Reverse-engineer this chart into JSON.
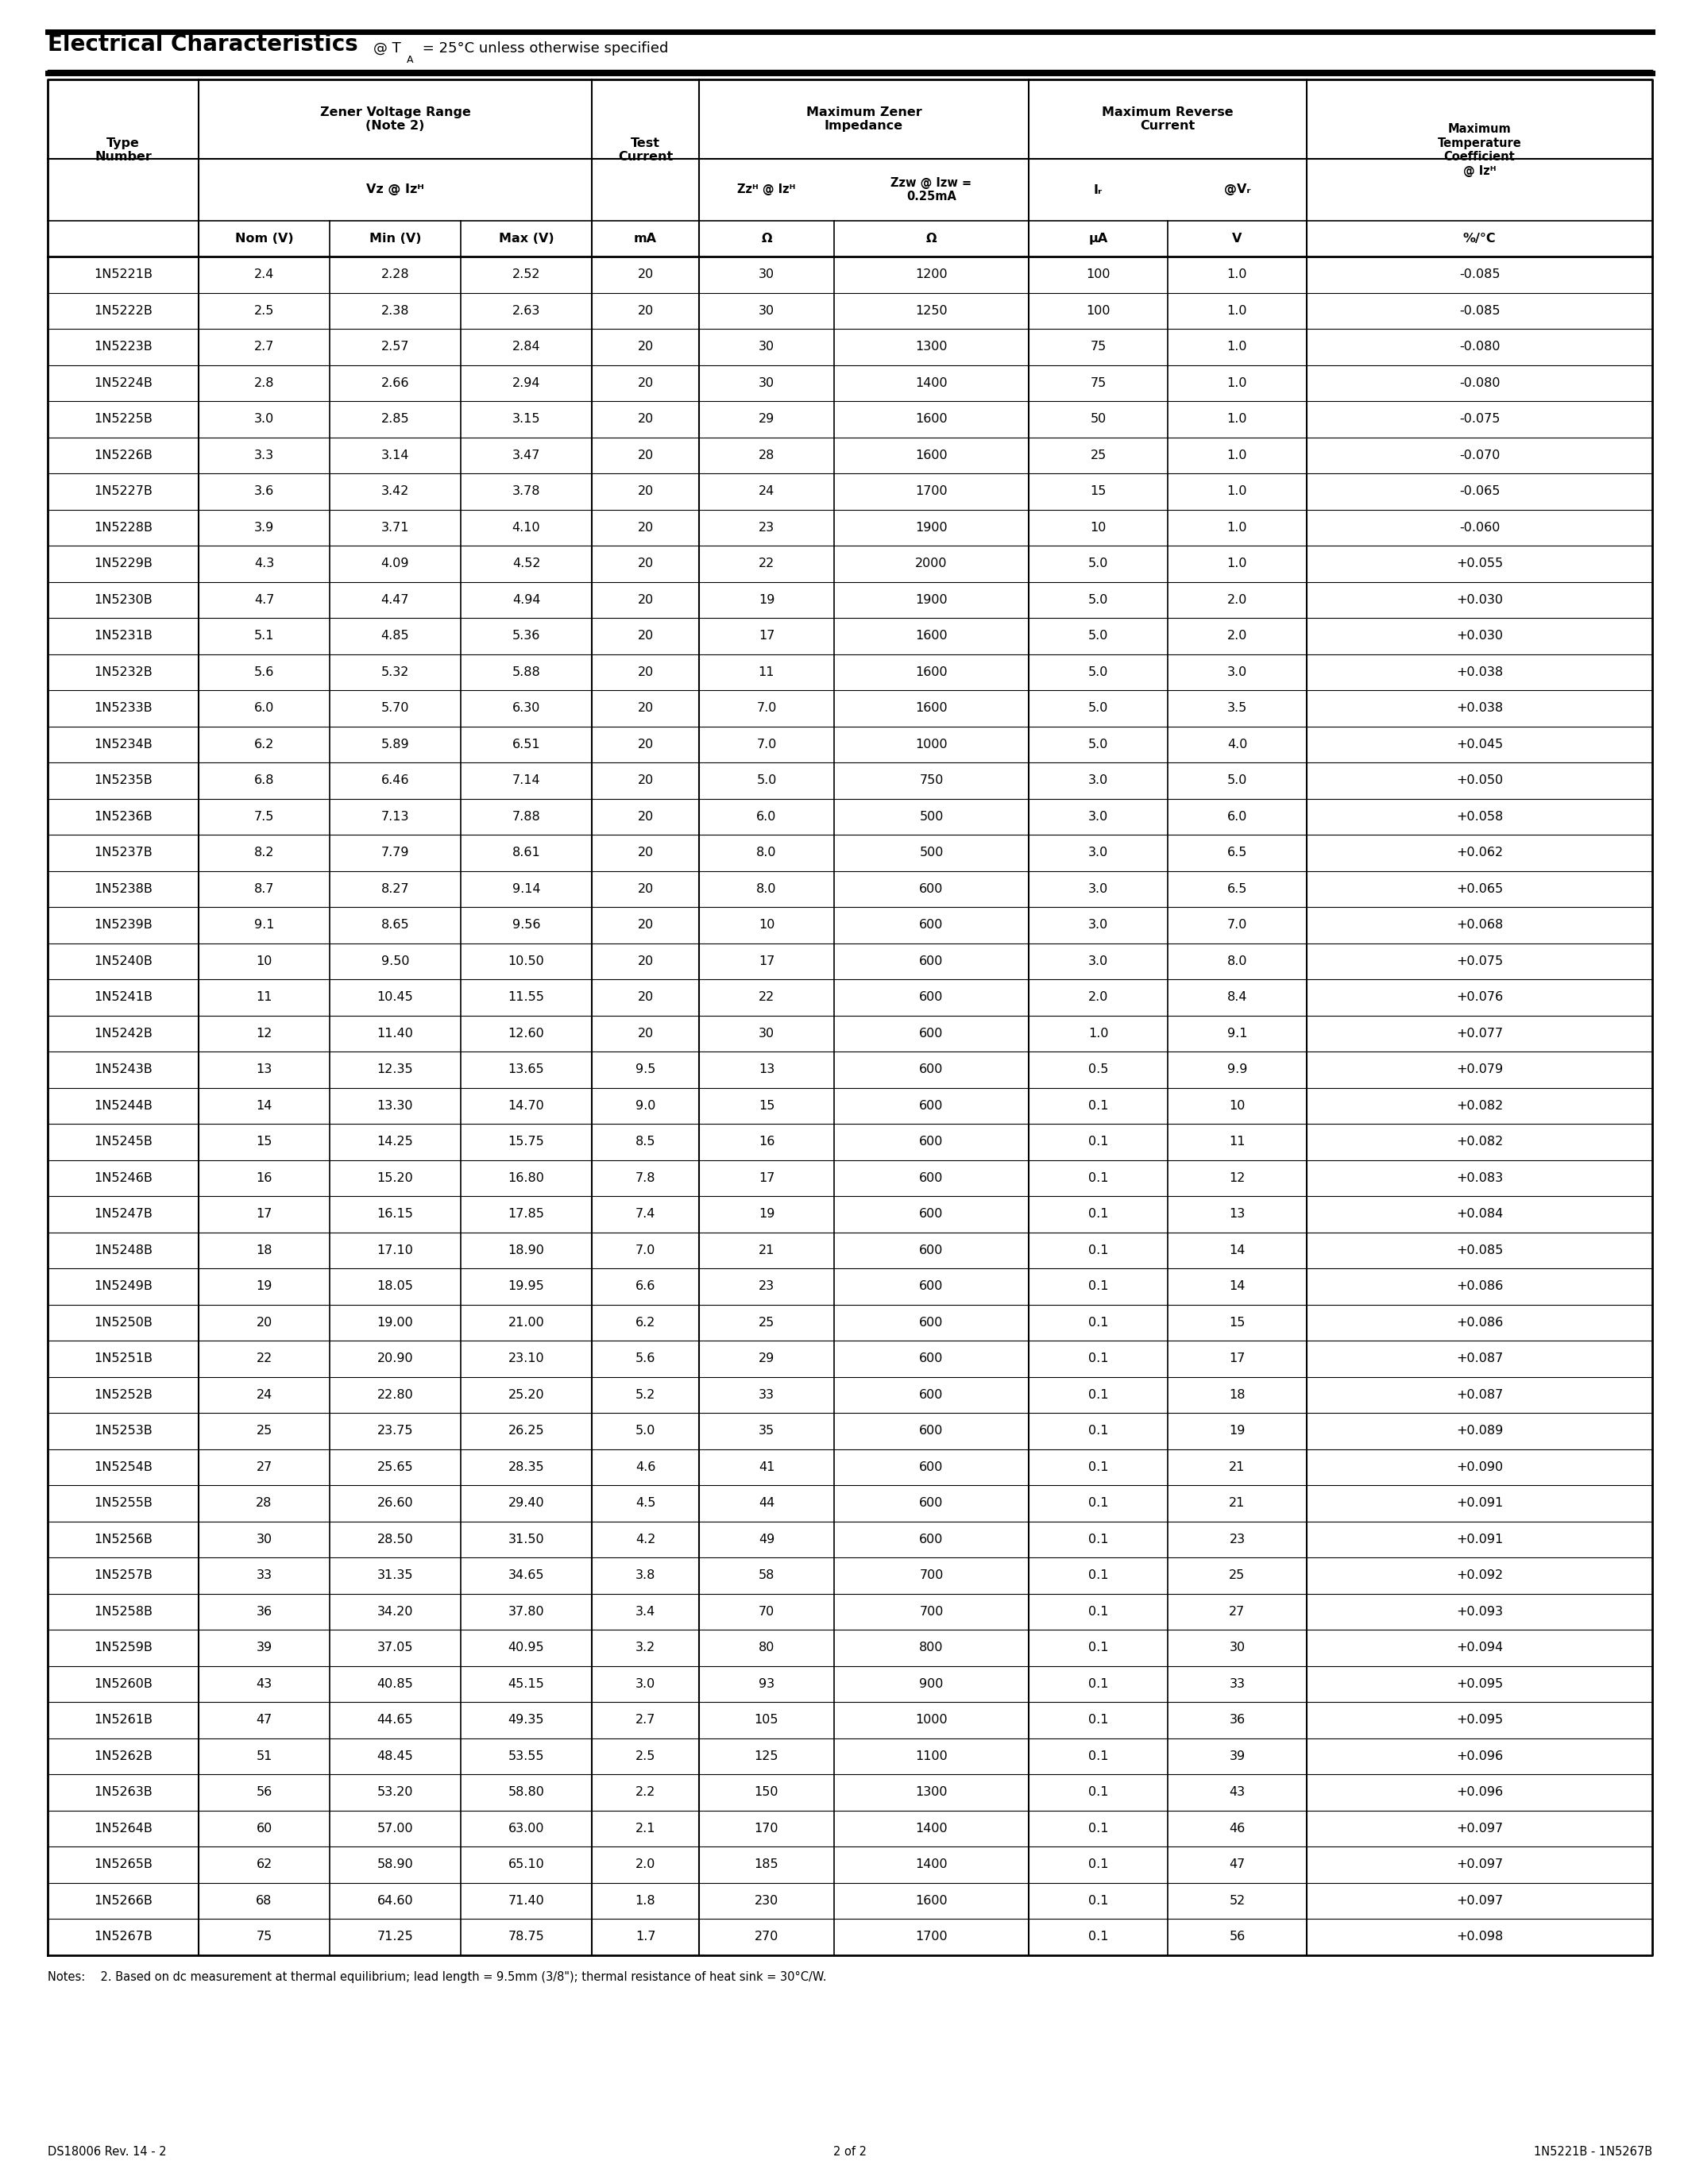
{
  "title_bold": "Electrical Characteristics",
  "title_subtitle": "@ T",
  "title_sub_char": "A",
  "title_rest": " = 25°C unless otherwise specified",
  "page_info_left": "DS18006 Rev. 14 - 2",
  "page_info_center": "2 of 2",
  "page_info_right": "1N5221B - 1N5267B",
  "note": "Notes:  2. Based on dc measurement at thermal equilibrium; lead length = 9.5mm (3/8\"); thermal resistance of heat sink = 30°C/W.",
  "rows": [
    [
      "1N5221B",
      "2.4",
      "2.28",
      "2.52",
      "20",
      "30",
      "1200",
      "100",
      "1.0",
      "-0.085"
    ],
    [
      "1N5222B",
      "2.5",
      "2.38",
      "2.63",
      "20",
      "30",
      "1250",
      "100",
      "1.0",
      "-0.085"
    ],
    [
      "1N5223B",
      "2.7",
      "2.57",
      "2.84",
      "20",
      "30",
      "1300",
      "75",
      "1.0",
      "-0.080"
    ],
    [
      "1N5224B",
      "2.8",
      "2.66",
      "2.94",
      "20",
      "30",
      "1400",
      "75",
      "1.0",
      "-0.080"
    ],
    [
      "1N5225B",
      "3.0",
      "2.85",
      "3.15",
      "20",
      "29",
      "1600",
      "50",
      "1.0",
      "-0.075"
    ],
    [
      "1N5226B",
      "3.3",
      "3.14",
      "3.47",
      "20",
      "28",
      "1600",
      "25",
      "1.0",
      "-0.070"
    ],
    [
      "1N5227B",
      "3.6",
      "3.42",
      "3.78",
      "20",
      "24",
      "1700",
      "15",
      "1.0",
      "-0.065"
    ],
    [
      "1N5228B",
      "3.9",
      "3.71",
      "4.10",
      "20",
      "23",
      "1900",
      "10",
      "1.0",
      "-0.060"
    ],
    [
      "1N5229B",
      "4.3",
      "4.09",
      "4.52",
      "20",
      "22",
      "2000",
      "5.0",
      "1.0",
      "+0.055"
    ],
    [
      "1N5230B",
      "4.7",
      "4.47",
      "4.94",
      "20",
      "19",
      "1900",
      "5.0",
      "2.0",
      "+0.030"
    ],
    [
      "1N5231B",
      "5.1",
      "4.85",
      "5.36",
      "20",
      "17",
      "1600",
      "5.0",
      "2.0",
      "+0.030"
    ],
    [
      "1N5232B",
      "5.6",
      "5.32",
      "5.88",
      "20",
      "11",
      "1600",
      "5.0",
      "3.0",
      "+0.038"
    ],
    [
      "1N5233B",
      "6.0",
      "5.70",
      "6.30",
      "20",
      "7.0",
      "1600",
      "5.0",
      "3.5",
      "+0.038"
    ],
    [
      "1N5234B",
      "6.2",
      "5.89",
      "6.51",
      "20",
      "7.0",
      "1000",
      "5.0",
      "4.0",
      "+0.045"
    ],
    [
      "1N5235B",
      "6.8",
      "6.46",
      "7.14",
      "20",
      "5.0",
      "750",
      "3.0",
      "5.0",
      "+0.050"
    ],
    [
      "1N5236B",
      "7.5",
      "7.13",
      "7.88",
      "20",
      "6.0",
      "500",
      "3.0",
      "6.0",
      "+0.058"
    ],
    [
      "1N5237B",
      "8.2",
      "7.79",
      "8.61",
      "20",
      "8.0",
      "500",
      "3.0",
      "6.5",
      "+0.062"
    ],
    [
      "1N5238B",
      "8.7",
      "8.27",
      "9.14",
      "20",
      "8.0",
      "600",
      "3.0",
      "6.5",
      "+0.065"
    ],
    [
      "1N5239B",
      "9.1",
      "8.65",
      "9.56",
      "20",
      "10",
      "600",
      "3.0",
      "7.0",
      "+0.068"
    ],
    [
      "1N5240B",
      "10",
      "9.50",
      "10.50",
      "20",
      "17",
      "600",
      "3.0",
      "8.0",
      "+0.075"
    ],
    [
      "1N5241B",
      "11",
      "10.45",
      "11.55",
      "20",
      "22",
      "600",
      "2.0",
      "8.4",
      "+0.076"
    ],
    [
      "1N5242B",
      "12",
      "11.40",
      "12.60",
      "20",
      "30",
      "600",
      "1.0",
      "9.1",
      "+0.077"
    ],
    [
      "1N5243B",
      "13",
      "12.35",
      "13.65",
      "9.5",
      "13",
      "600",
      "0.5",
      "9.9",
      "+0.079"
    ],
    [
      "1N5244B",
      "14",
      "13.30",
      "14.70",
      "9.0",
      "15",
      "600",
      "0.1",
      "10",
      "+0.082"
    ],
    [
      "1N5245B",
      "15",
      "14.25",
      "15.75",
      "8.5",
      "16",
      "600",
      "0.1",
      "11",
      "+0.082"
    ],
    [
      "1N5246B",
      "16",
      "15.20",
      "16.80",
      "7.8",
      "17",
      "600",
      "0.1",
      "12",
      "+0.083"
    ],
    [
      "1N5247B",
      "17",
      "16.15",
      "17.85",
      "7.4",
      "19",
      "600",
      "0.1",
      "13",
      "+0.084"
    ],
    [
      "1N5248B",
      "18",
      "17.10",
      "18.90",
      "7.0",
      "21",
      "600",
      "0.1",
      "14",
      "+0.085"
    ],
    [
      "1N5249B",
      "19",
      "18.05",
      "19.95",
      "6.6",
      "23",
      "600",
      "0.1",
      "14",
      "+0.086"
    ],
    [
      "1N5250B",
      "20",
      "19.00",
      "21.00",
      "6.2",
      "25",
      "600",
      "0.1",
      "15",
      "+0.086"
    ],
    [
      "1N5251B",
      "22",
      "20.90",
      "23.10",
      "5.6",
      "29",
      "600",
      "0.1",
      "17",
      "+0.087"
    ],
    [
      "1N5252B",
      "24",
      "22.80",
      "25.20",
      "5.2",
      "33",
      "600",
      "0.1",
      "18",
      "+0.087"
    ],
    [
      "1N5253B",
      "25",
      "23.75",
      "26.25",
      "5.0",
      "35",
      "600",
      "0.1",
      "19",
      "+0.089"
    ],
    [
      "1N5254B",
      "27",
      "25.65",
      "28.35",
      "4.6",
      "41",
      "600",
      "0.1",
      "21",
      "+0.090"
    ],
    [
      "1N5255B",
      "28",
      "26.60",
      "29.40",
      "4.5",
      "44",
      "600",
      "0.1",
      "21",
      "+0.091"
    ],
    [
      "1N5256B",
      "30",
      "28.50",
      "31.50",
      "4.2",
      "49",
      "600",
      "0.1",
      "23",
      "+0.091"
    ],
    [
      "1N5257B",
      "33",
      "31.35",
      "34.65",
      "3.8",
      "58",
      "700",
      "0.1",
      "25",
      "+0.092"
    ],
    [
      "1N5258B",
      "36",
      "34.20",
      "37.80",
      "3.4",
      "70",
      "700",
      "0.1",
      "27",
      "+0.093"
    ],
    [
      "1N5259B",
      "39",
      "37.05",
      "40.95",
      "3.2",
      "80",
      "800",
      "0.1",
      "30",
      "+0.094"
    ],
    [
      "1N5260B",
      "43",
      "40.85",
      "45.15",
      "3.0",
      "93",
      "900",
      "0.1",
      "33",
      "+0.095"
    ],
    [
      "1N5261B",
      "47",
      "44.65",
      "49.35",
      "2.7",
      "105",
      "1000",
      "0.1",
      "36",
      "+0.095"
    ],
    [
      "1N5262B",
      "51",
      "48.45",
      "53.55",
      "2.5",
      "125",
      "1100",
      "0.1",
      "39",
      "+0.096"
    ],
    [
      "1N5263B",
      "56",
      "53.20",
      "58.80",
      "2.2",
      "150",
      "1300",
      "0.1",
      "43",
      "+0.096"
    ],
    [
      "1N5264B",
      "60",
      "57.00",
      "63.00",
      "2.1",
      "170",
      "1400",
      "0.1",
      "46",
      "+0.097"
    ],
    [
      "1N5265B",
      "62",
      "58.90",
      "65.10",
      "2.0",
      "185",
      "1400",
      "0.1",
      "47",
      "+0.097"
    ],
    [
      "1N5266B",
      "68",
      "64.60",
      "71.40",
      "1.8",
      "230",
      "1600",
      "0.1",
      "52",
      "+0.097"
    ],
    [
      "1N5267B",
      "75",
      "71.25",
      "78.75",
      "1.7",
      "270",
      "1700",
      "0.1",
      "56",
      "+0.098"
    ]
  ]
}
